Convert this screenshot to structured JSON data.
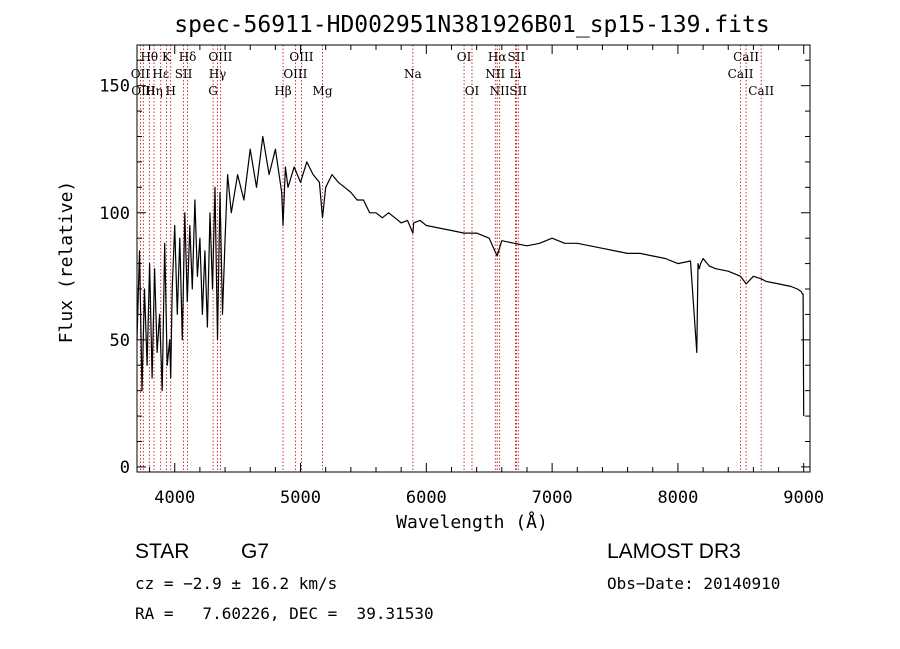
{
  "chart_data": {
    "type": "line",
    "title": "spec-56911-HD002951N381926B01_sp15-139.fits",
    "xlabel": "Wavelength (Å)",
    "ylabel": "Flux (relative)",
    "xlim": [
      3700,
      9050
    ],
    "ylim": [
      -2,
      166
    ],
    "x_ticks": [
      4000,
      5000,
      6000,
      7000,
      8000,
      9000
    ],
    "y_ticks": [
      0,
      50,
      100,
      150
    ],
    "series": [
      {
        "name": "flux",
        "x": [
          3700,
          3720,
          3740,
          3760,
          3780,
          3800,
          3820,
          3840,
          3860,
          3880,
          3900,
          3920,
          3940,
          3960,
          3968,
          3980,
          4000,
          4020,
          4040,
          4060,
          4080,
          4100,
          4120,
          4140,
          4160,
          4180,
          4200,
          4220,
          4240,
          4260,
          4280,
          4300,
          4320,
          4340,
          4360,
          4380,
          4400,
          4420,
          4450,
          4500,
          4550,
          4600,
          4650,
          4700,
          4750,
          4800,
          4850,
          4861,
          4880,
          4900,
          4950,
          5000,
          5050,
          5100,
          5150,
          5175,
          5200,
          5250,
          5300,
          5350,
          5400,
          5450,
          5500,
          5550,
          5600,
          5650,
          5700,
          5750,
          5800,
          5850,
          5893,
          5900,
          5950,
          6000,
          6100,
          6200,
          6300,
          6400,
          6500,
          6563,
          6600,
          6700,
          6800,
          6900,
          7000,
          7100,
          7200,
          7300,
          7400,
          7500,
          7600,
          7700,
          7800,
          7900,
          8000,
          8100,
          8150,
          8160,
          8170,
          8180,
          8200,
          8250,
          8300,
          8400,
          8498,
          8542,
          8600,
          8662,
          8700,
          8800,
          8900,
          8950,
          8980,
          8990,
          8995,
          9000
        ],
        "y": [
          50,
          85,
          30,
          70,
          40,
          80,
          35,
          78,
          45,
          60,
          30,
          88,
          40,
          50,
          35,
          70,
          95,
          60,
          90,
          50,
          100,
          65,
          95,
          70,
          105,
          75,
          90,
          60,
          85,
          55,
          100,
          70,
          110,
          50,
          108,
          60,
          90,
          115,
          100,
          115,
          105,
          125,
          110,
          130,
          115,
          125,
          108,
          95,
          118,
          110,
          118,
          112,
          120,
          115,
          112,
          98,
          110,
          115,
          112,
          110,
          108,
          105,
          105,
          100,
          100,
          98,
          100,
          98,
          96,
          97,
          92,
          96,
          97,
          95,
          94,
          93,
          92,
          92,
          90,
          83,
          89,
          88,
          87,
          88,
          90,
          88,
          88,
          87,
          86,
          85,
          84,
          84,
          83,
          82,
          80,
          81,
          45,
          80,
          78,
          80,
          82,
          79,
          78,
          77,
          75,
          72,
          75,
          74,
          73,
          72,
          71,
          70,
          69,
          68,
          68,
          20
        ]
      }
    ],
    "spectral_lines": [
      {
        "label": "Hθ",
        "wavelength": 3798,
        "row": 1
      },
      {
        "label": "OII",
        "wavelength": 3727,
        "row": 2
      },
      {
        "label": "OIII",
        "wavelength": 3750,
        "row": 3
      },
      {
        "label": "K",
        "wavelength": 3934,
        "row": 1
      },
      {
        "label": "Hε",
        "wavelength": 3889,
        "row": 2
      },
      {
        "label": "Hη",
        "wavelength": 3835,
        "row": 3
      },
      {
        "label": "SII",
        "wavelength": 4070,
        "row": 2
      },
      {
        "label": "H",
        "wavelength": 3968,
        "row": 3
      },
      {
        "label": "Hδ",
        "wavelength": 4102,
        "row": 1
      },
      {
        "label": "OIII",
        "wavelength": 4363,
        "row": 1
      },
      {
        "label": "Hγ",
        "wavelength": 4340,
        "row": 2
      },
      {
        "label": "G",
        "wavelength": 4305,
        "row": 3
      },
      {
        "label": "OIII",
        "wavelength": 5007,
        "row": 1
      },
      {
        "label": "OIII",
        "wavelength": 4959,
        "row": 2
      },
      {
        "label": "Hβ",
        "wavelength": 4861,
        "row": 3
      },
      {
        "label": "Mg",
        "wavelength": 5175,
        "row": 3
      },
      {
        "label": "Na",
        "wavelength": 5893,
        "row": 2
      },
      {
        "label": "OI",
        "wavelength": 6300,
        "row": 1
      },
      {
        "label": "OI",
        "wavelength": 6363,
        "row": 3
      },
      {
        "label": "Hα",
        "wavelength": 6563,
        "row": 1
      },
      {
        "label": "SII",
        "wavelength": 6716,
        "row": 1
      },
      {
        "label": "NII",
        "wavelength": 6548,
        "row": 2
      },
      {
        "label": "Li",
        "wavelength": 6708,
        "row": 2
      },
      {
        "label": "NII",
        "wavelength": 6583,
        "row": 3
      },
      {
        "label": "SII",
        "wavelength": 6731,
        "row": 3
      },
      {
        "label": "CaII",
        "wavelength": 8542,
        "row": 1
      },
      {
        "label": "CaII",
        "wavelength": 8498,
        "row": 2
      },
      {
        "label": "CaII",
        "wavelength": 8662,
        "row": 3
      }
    ]
  },
  "info": {
    "class_label": "STAR",
    "subclass_label": "G7",
    "survey": "LAMOST DR3",
    "cz": "cz = −2.9 ± 16.2 km/s",
    "obs_date": "Obs−Date: 20140910",
    "radec": "RA =   7.60226, DEC =  39.31530"
  },
  "colors": {
    "line_marker": "#c00000",
    "spectrum": "#000000",
    "axes": "#000000"
  }
}
